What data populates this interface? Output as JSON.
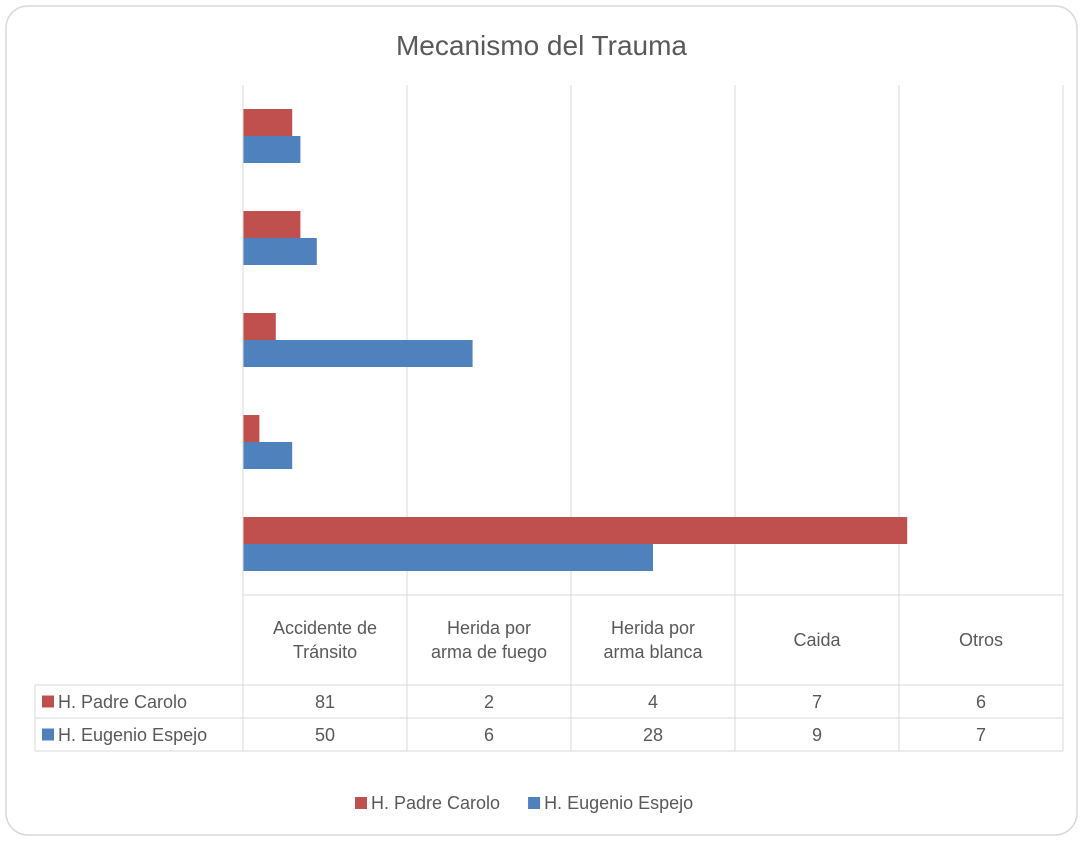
{
  "chart_data": {
    "type": "hbar",
    "title": "Mecanismo del Trauma",
    "categories": [
      "Accidente de Tránsito",
      "Herida por arma de fuego",
      "Herida por arma blanca",
      "Caida",
      "Otros"
    ],
    "series": [
      {
        "name": "H. Padre Carolo",
        "color": "#c0504d",
        "values": [
          81,
          2,
          4,
          7,
          6
        ]
      },
      {
        "name": "H. Eugenio Espejo",
        "color": "#4f81bd",
        "values": [
          50,
          6,
          28,
          9,
          7
        ]
      }
    ],
    "xlim": [
      0,
      100
    ],
    "xticks": [
      0,
      20,
      40,
      60,
      80,
      100
    ],
    "grid": true,
    "legend": "bottom"
  }
}
